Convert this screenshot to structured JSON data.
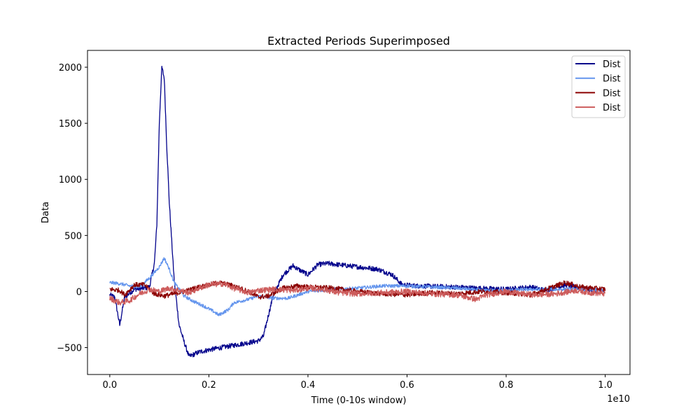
{
  "chart_data": {
    "type": "line",
    "title": "Extracted Periods Superimposed",
    "xlabel": "Time (0-10s window)",
    "ylabel": "Data",
    "x_offset_label": "1e10",
    "xlim": [
      -0.045,
      1.05
    ],
    "ylim": [
      -740,
      2150
    ],
    "x_ticks": [
      0.0,
      0.2,
      0.4,
      0.6,
      0.8,
      1.0
    ],
    "x_tick_labels": [
      "0.0",
      "0.2",
      "0.4",
      "0.6",
      "0.8",
      "1.0"
    ],
    "y_ticks": [
      -500,
      0,
      500,
      1000,
      1500,
      2000
    ],
    "y_tick_labels": [
      "−500",
      "0",
      "500",
      "1000",
      "1500",
      "2000"
    ],
    "legend": {
      "placement": "top-right"
    },
    "series": [
      {
        "name": "Dist",
        "color": "#00008b",
        "noise": 22,
        "points": [
          [
            0.0,
            -30
          ],
          [
            0.01,
            -50
          ],
          [
            0.02,
            -300
          ],
          [
            0.03,
            -50
          ],
          [
            0.05,
            20
          ],
          [
            0.07,
            30
          ],
          [
            0.08,
            40
          ],
          [
            0.09,
            250
          ],
          [
            0.095,
            600
          ],
          [
            0.1,
            1500
          ],
          [
            0.105,
            2000
          ],
          [
            0.11,
            1900
          ],
          [
            0.115,
            1300
          ],
          [
            0.12,
            800
          ],
          [
            0.13,
            100
          ],
          [
            0.14,
            -300
          ],
          [
            0.15,
            -450
          ],
          [
            0.16,
            -580
          ],
          [
            0.18,
            -540
          ],
          [
            0.2,
            -520
          ],
          [
            0.25,
            -480
          ],
          [
            0.3,
            -440
          ],
          [
            0.31,
            -400
          ],
          [
            0.33,
            -30
          ],
          [
            0.35,
            150
          ],
          [
            0.37,
            230
          ],
          [
            0.38,
            200
          ],
          [
            0.4,
            150
          ],
          [
            0.42,
            240
          ],
          [
            0.44,
            250
          ],
          [
            0.5,
            220
          ],
          [
            0.54,
            200
          ],
          [
            0.57,
            150
          ],
          [
            0.59,
            60
          ],
          [
            0.62,
            50
          ],
          [
            0.7,
            40
          ],
          [
            0.74,
            30
          ],
          [
            0.8,
            20
          ],
          [
            0.85,
            40
          ],
          [
            0.88,
            10
          ],
          [
            0.92,
            60
          ],
          [
            0.96,
            20
          ],
          [
            1.0,
            0
          ]
        ]
      },
      {
        "name": "Dist",
        "color": "#6495ed",
        "noise": 15,
        "points": [
          [
            0.0,
            80
          ],
          [
            0.02,
            70
          ],
          [
            0.04,
            50
          ],
          [
            0.06,
            40
          ],
          [
            0.08,
            120
          ],
          [
            0.1,
            220
          ],
          [
            0.11,
            300
          ],
          [
            0.12,
            200
          ],
          [
            0.13,
            80
          ],
          [
            0.15,
            -40
          ],
          [
            0.17,
            -90
          ],
          [
            0.19,
            -130
          ],
          [
            0.21,
            -180
          ],
          [
            0.22,
            -210
          ],
          [
            0.24,
            -160
          ],
          [
            0.25,
            -100
          ],
          [
            0.28,
            -70
          ],
          [
            0.3,
            -40
          ],
          [
            0.33,
            -60
          ],
          [
            0.36,
            -60
          ],
          [
            0.38,
            -30
          ],
          [
            0.4,
            0
          ],
          [
            0.45,
            20
          ],
          [
            0.5,
            30
          ],
          [
            0.55,
            50
          ],
          [
            0.6,
            50
          ],
          [
            0.65,
            40
          ],
          [
            0.7,
            30
          ],
          [
            0.75,
            10
          ],
          [
            0.8,
            10
          ],
          [
            0.85,
            20
          ],
          [
            0.9,
            20
          ],
          [
            0.95,
            20
          ],
          [
            1.0,
            10
          ]
        ]
      },
      {
        "name": "Dist",
        "color": "#8b0000",
        "noise": 22,
        "points": [
          [
            0.0,
            20
          ],
          [
            0.02,
            10
          ],
          [
            0.03,
            -30
          ],
          [
            0.05,
            60
          ],
          [
            0.07,
            60
          ],
          [
            0.09,
            -20
          ],
          [
            0.11,
            -40
          ],
          [
            0.13,
            -20
          ],
          [
            0.15,
            0
          ],
          [
            0.18,
            40
          ],
          [
            0.22,
            80
          ],
          [
            0.25,
            50
          ],
          [
            0.28,
            0
          ],
          [
            0.3,
            -50
          ],
          [
            0.32,
            -40
          ],
          [
            0.35,
            30
          ],
          [
            0.38,
            50
          ],
          [
            0.4,
            40
          ],
          [
            0.45,
            30
          ],
          [
            0.5,
            0
          ],
          [
            0.55,
            -20
          ],
          [
            0.6,
            -30
          ],
          [
            0.65,
            -10
          ],
          [
            0.7,
            -20
          ],
          [
            0.75,
            0
          ],
          [
            0.8,
            -10
          ],
          [
            0.85,
            -30
          ],
          [
            0.9,
            50
          ],
          [
            0.92,
            80
          ],
          [
            0.95,
            40
          ],
          [
            1.0,
            20
          ]
        ]
      },
      {
        "name": "Dist",
        "color": "#cd5c5c",
        "noise": 26,
        "points": [
          [
            0.0,
            -60
          ],
          [
            0.02,
            -100
          ],
          [
            0.04,
            -80
          ],
          [
            0.06,
            -20
          ],
          [
            0.08,
            20
          ],
          [
            0.1,
            0
          ],
          [
            0.12,
            30
          ],
          [
            0.14,
            10
          ],
          [
            0.16,
            -10
          ],
          [
            0.18,
            30
          ],
          [
            0.2,
            60
          ],
          [
            0.23,
            70
          ],
          [
            0.25,
            30
          ],
          [
            0.28,
            -10
          ],
          [
            0.3,
            10
          ],
          [
            0.33,
            20
          ],
          [
            0.37,
            10
          ],
          [
            0.4,
            30
          ],
          [
            0.43,
            20
          ],
          [
            0.46,
            -10
          ],
          [
            0.5,
            -20
          ],
          [
            0.55,
            -10
          ],
          [
            0.6,
            0
          ],
          [
            0.65,
            -20
          ],
          [
            0.7,
            -30
          ],
          [
            0.74,
            -70
          ],
          [
            0.76,
            -30
          ],
          [
            0.8,
            0
          ],
          [
            0.83,
            -20
          ],
          [
            0.86,
            -30
          ],
          [
            0.9,
            -20
          ],
          [
            0.94,
            10
          ],
          [
            0.97,
            -10
          ],
          [
            1.0,
            -20
          ]
        ]
      }
    ]
  }
}
